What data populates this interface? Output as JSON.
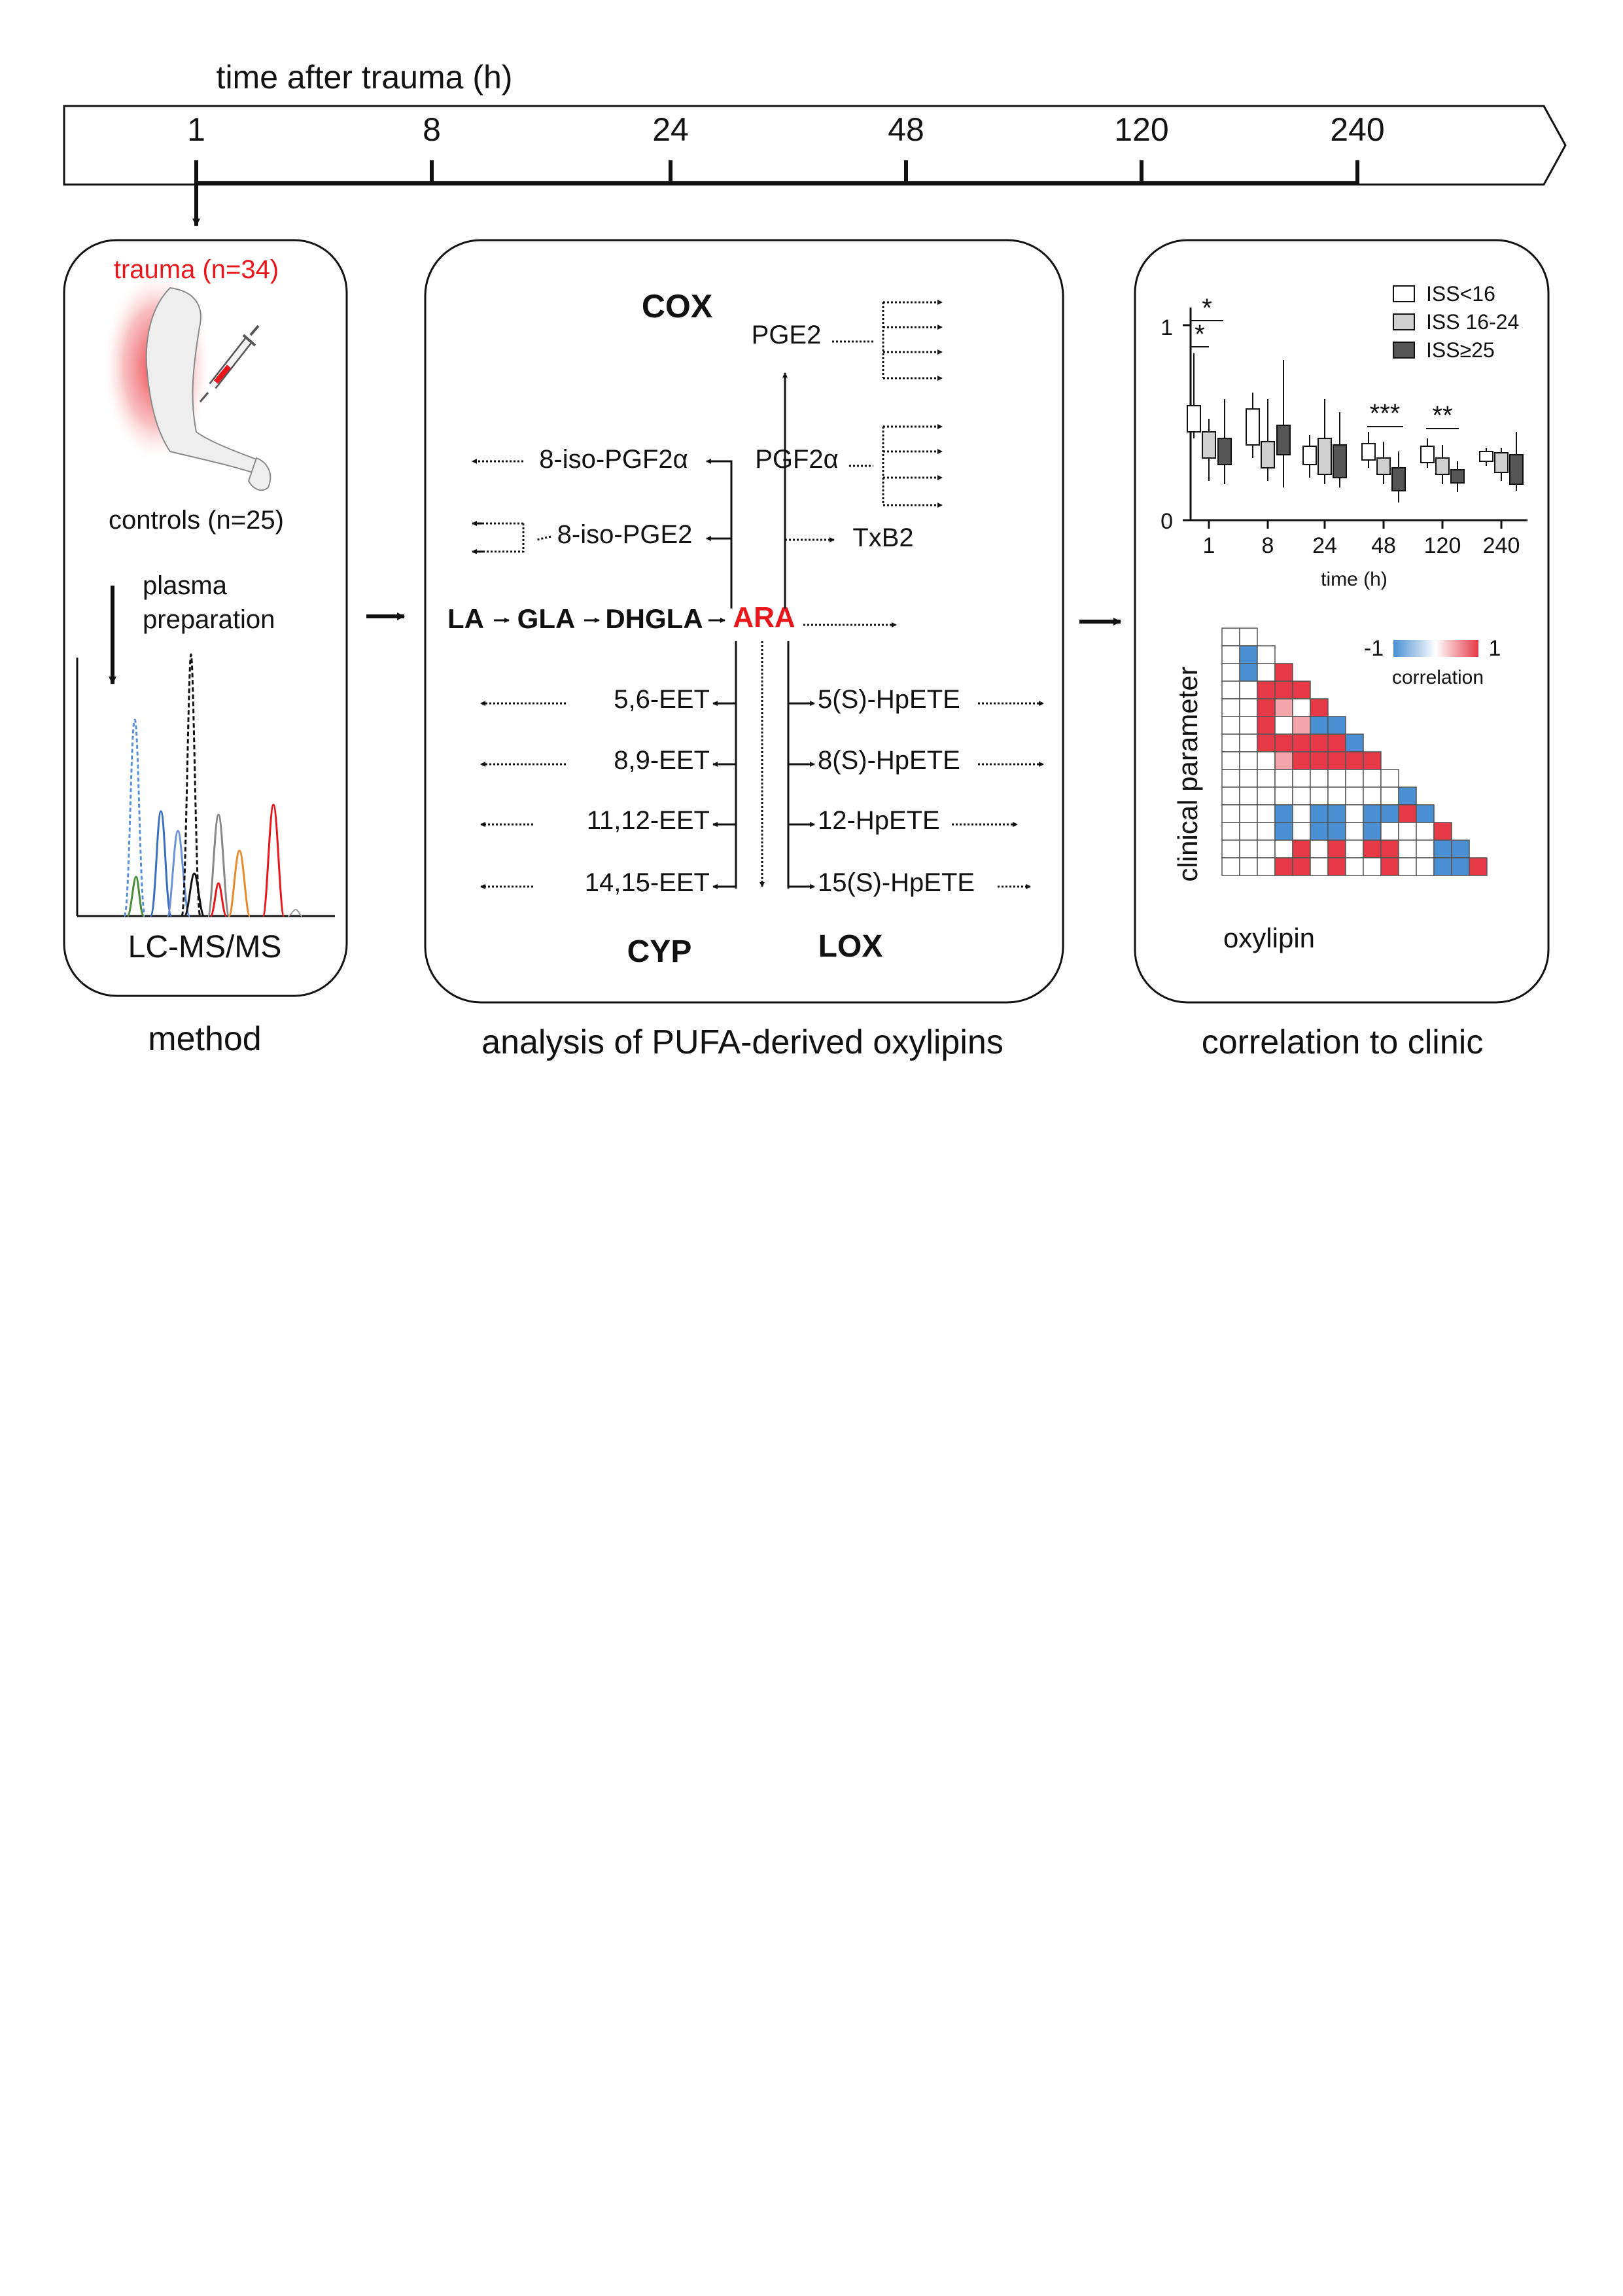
{
  "timeline": {
    "title": "time after trauma (h)",
    "ticks": [
      "1",
      "8",
      "24",
      "48",
      "120",
      "240"
    ]
  },
  "method": {
    "trauma_label": "trauma (n=34)",
    "controls_label": "controls (n=25)",
    "plasma_line1": "plasma",
    "plasma_line2": "preparation",
    "lcms_label": "LC-MS/MS",
    "caption": "method"
  },
  "analysis": {
    "caption": "analysis of PUFA-derived oxylipins",
    "cox": "COX",
    "cyp": "CYP",
    "lox": "LOX",
    "pge2": "PGE2",
    "pgf2a": "PGF2α",
    "iso_pgf2a": "8-iso-PGF2α",
    "iso_pge2": "8-iso-PGE2",
    "txb2": "TxB2",
    "chain": [
      "LA",
      "GLA",
      "DHGLA",
      "ARA"
    ],
    "eets": [
      "5,6-EET",
      "8,9-EET",
      "11,12-EET",
      "14,15-EET"
    ],
    "hpetes": [
      "5(S)-HpETE",
      "8(S)-HpETE",
      "12-HpETE",
      "15(S)-HpETE"
    ]
  },
  "clinic": {
    "caption": "correlation to clinic",
    "boxplot": {
      "y_ticks": [
        "1",
        "0"
      ],
      "x_ticks": [
        "1",
        "8",
        "24",
        "48",
        "120",
        "240"
      ],
      "xlabel": "time (h)",
      "legend": [
        "ISS<16",
        "ISS 16-24",
        "ISS≥25"
      ],
      "significance": [
        "*",
        "*",
        "***",
        "**"
      ]
    },
    "heatmap": {
      "ylabel": "clinical parameter",
      "xlabel": "oxylipin",
      "scale_min": "-1",
      "scale_max": "1",
      "scale_label": "correlation"
    }
  },
  "colors": {
    "accent_red": "#e8151b",
    "positive": "#e63946",
    "negative": "#4a8fd1",
    "iss_low": "#ffffff",
    "iss_mid": "#cfcfcf",
    "iss_high": "#555555"
  }
}
